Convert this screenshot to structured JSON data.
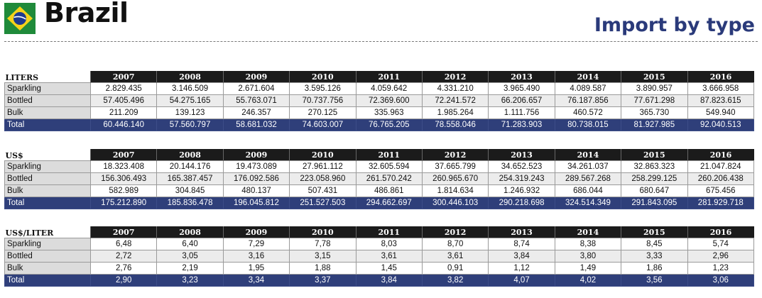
{
  "header": {
    "country": "Brazil",
    "subtitle": "Import by type",
    "flag_icon": "brazil-flag-icon",
    "accent_color": "#2a3a7a"
  },
  "years": [
    "2007",
    "2008",
    "2009",
    "2010",
    "2011",
    "2012",
    "2013",
    "2014",
    "2015",
    "2016"
  ],
  "tables": [
    {
      "unit": "LITERS",
      "rows": [
        {
          "label": "Sparkling",
          "values": [
            "2.829.435",
            "3.146.509",
            "2.671.604",
            "3.595.126",
            "4.059.642",
            "4.331.210",
            "3.965.490",
            "4.089.587",
            "3.890.957",
            "3.666.958"
          ]
        },
        {
          "label": "Bottled",
          "values": [
            "57.405.496",
            "54.275.165",
            "55.763.071",
            "70.737.756",
            "72.369.600",
            "72.241.572",
            "66.206.657",
            "76.187.856",
            "77.671.298",
            "87.823.615"
          ]
        },
        {
          "label": "Bulk",
          "values": [
            "211.209",
            "139.123",
            "246.357",
            "270.125",
            "335.963",
            "1.985.264",
            "1.111.756",
            "460.572",
            "365.730",
            "549.940"
          ]
        },
        {
          "label": "Total",
          "values": [
            "60.446.140",
            "57.560.797",
            "58.681.032",
            "74.603.007",
            "76.765.205",
            "78.558.046",
            "71.283.903",
            "80.738.015",
            "81.927.985",
            "92.040.513"
          ]
        }
      ]
    },
    {
      "unit": "US$",
      "rows": [
        {
          "label": "Sparkling",
          "values": [
            "18.323.408",
            "20.144.176",
            "19.473.089",
            "27.961.112",
            "32.605.594",
            "37.665.799",
            "34.652.523",
            "34.261.037",
            "32.863.323",
            "21.047.824"
          ]
        },
        {
          "label": "Bottled",
          "values": [
            "156.306.493",
            "165.387.457",
            "176.092.586",
            "223.058.960",
            "261.570.242",
            "260.965.670",
            "254.319.243",
            "289.567.268",
            "258.299.125",
            "260.206.438"
          ]
        },
        {
          "label": "Bulk",
          "values": [
            "582.989",
            "304.845",
            "480.137",
            "507.431",
            "486.861",
            "1.814.634",
            "1.246.932",
            "686.044",
            "680.647",
            "675.456"
          ]
        },
        {
          "label": "Total",
          "values": [
            "175.212.890",
            "185.836.478",
            "196.045.812",
            "251.527.503",
            "294.662.697",
            "300.446.103",
            "290.218.698",
            "324.514.349",
            "291.843.095",
            "281.929.718"
          ]
        }
      ]
    },
    {
      "unit": "US$/LITER",
      "rows": [
        {
          "label": "Sparkling",
          "values": [
            "6,48",
            "6,40",
            "7,29",
            "7,78",
            "8,03",
            "8,70",
            "8,74",
            "8,38",
            "8,45",
            "5,74"
          ]
        },
        {
          "label": "Bottled",
          "values": [
            "2,72",
            "3,05",
            "3,16",
            "3,15",
            "3,61",
            "3,61",
            "3,84",
            "3,80",
            "3,33",
            "2,96"
          ]
        },
        {
          "label": "Bulk",
          "values": [
            "2,76",
            "2,19",
            "1,95",
            "1,88",
            "1,45",
            "0,91",
            "1,12",
            "1,49",
            "1,86",
            "1,23"
          ]
        },
        {
          "label": "Total",
          "values": [
            "2,90",
            "3,23",
            "3,34",
            "3,37",
            "3,84",
            "3,82",
            "4,07",
            "4,02",
            "3,56",
            "3,06"
          ]
        }
      ]
    }
  ]
}
